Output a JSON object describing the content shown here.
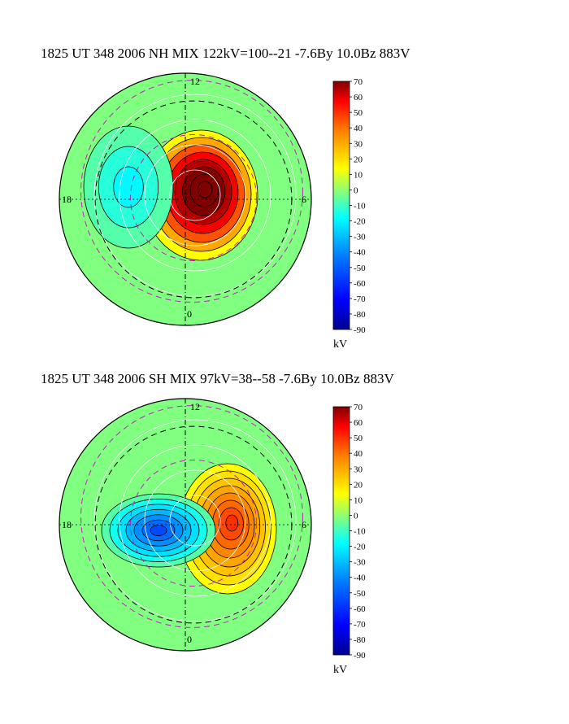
{
  "chart_data": [
    {
      "type": "contour-polar",
      "title": "1825 UT 348 2006 NH MIX 122kV=100--21 -7.6By 10.0Bz 883V",
      "hemisphere": "NH",
      "potential_max_kV": 100,
      "potential_min_kV": -21,
      "clock_labels": [
        "12",
        "6",
        "0",
        "18"
      ],
      "colorbar": {
        "ticks": [
          70,
          60,
          50,
          40,
          30,
          20,
          10,
          0,
          -10,
          -20,
          -30,
          -40,
          -50,
          -60,
          -70,
          -80,
          -90
        ],
        "range": [
          -90,
          70
        ],
        "unit": "kV"
      }
    },
    {
      "type": "contour-polar",
      "title": "1825 UT 348 2006 SH MIX 97kV=38--58 -7.6By 10.0Bz 883V",
      "hemisphere": "SH",
      "potential_max_kV": 38,
      "potential_min_kV": -58,
      "clock_labels": [
        "12",
        "6",
        "0",
        "18"
      ],
      "colorbar": {
        "ticks": [
          70,
          60,
          50,
          40,
          30,
          20,
          10,
          0,
          -10,
          -20,
          -30,
          -40,
          -50,
          -60,
          -70,
          -80,
          -90
        ],
        "range": [
          -90,
          70
        ],
        "unit": "kV"
      }
    }
  ],
  "colors": {
    "background_level": "#a8e84a",
    "outline": "#000000"
  }
}
